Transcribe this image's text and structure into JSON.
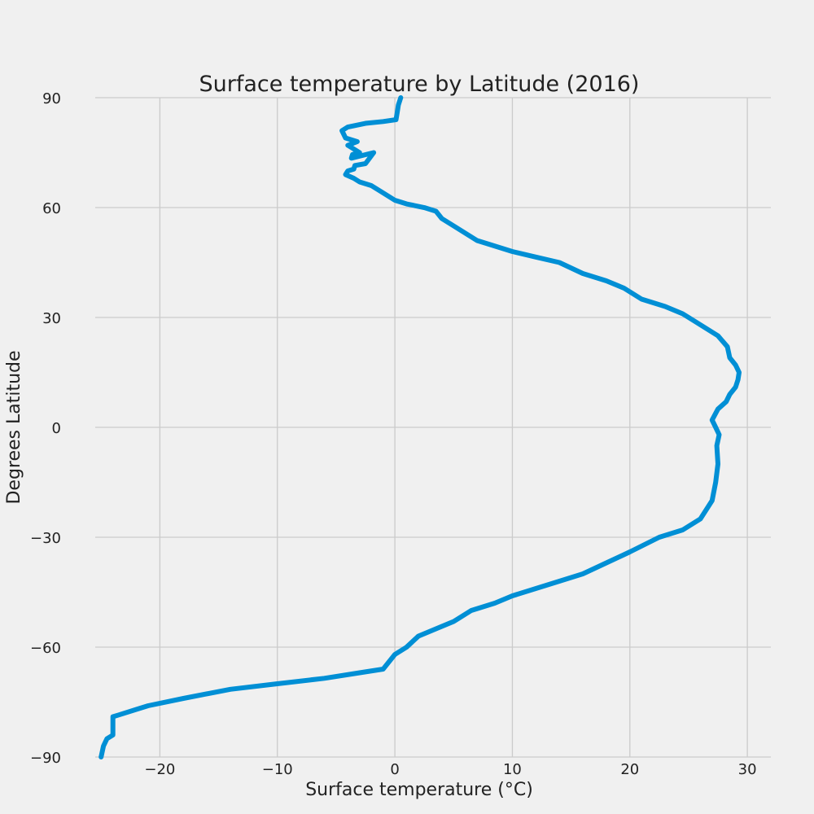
{
  "chart_data": {
    "type": "line",
    "title": "Surface temperature by Latitude (2016)",
    "xlabel": "Surface temperature (°C)",
    "ylabel": "Degrees Latitude",
    "xlim": [
      -25.5,
      32
    ],
    "ylim": [
      -90,
      90
    ],
    "xticks": [
      -20,
      -10,
      0,
      10,
      20,
      30
    ],
    "yticks": [
      -90,
      -60,
      -30,
      0,
      30,
      60,
      90
    ],
    "xtick_labels": [
      "−20",
      "−10",
      "0",
      "10",
      "20",
      "30"
    ],
    "ytick_labels": [
      "−90",
      "−60",
      "−30",
      "0",
      "30",
      "60",
      "90"
    ],
    "grid": true,
    "line_color": "#008fd5",
    "background_color": "#f0f0f0",
    "grid_color": "#cbcbcb",
    "series": [
      {
        "x": [
          0.5,
          0.3,
          0.2,
          0.1,
          -1.0,
          -2.5,
          -4.0,
          -4.5,
          -4.2,
          -3.2,
          -4.0,
          -3.5,
          -3.0,
          -3.6,
          -3.7,
          -1.8,
          -2.5,
          -3.4,
          -3.5,
          -4.0,
          -4.2,
          -3.5,
          -3.0,
          -2.0,
          -1.0,
          0.0,
          1.0,
          2.5,
          3.5,
          4.0,
          5.0,
          6.0,
          7.0,
          8.0,
          10.0,
          12.0,
          14.0,
          16.0,
          18.0,
          19.5,
          20.0,
          21.0,
          23.0,
          24.5,
          25.5,
          26.5,
          27.5,
          28.3,
          28.5,
          29.0,
          29.3,
          29.2,
          29.0,
          28.5,
          28.2,
          27.5,
          27.0,
          27.3,
          27.6,
          27.4,
          27.5,
          27.3,
          27.0,
          26.0,
          24.5,
          22.5,
          20.0,
          18.0,
          16.0,
          14.0,
          12.0,
          10.0,
          8.5,
          6.5,
          5.0,
          3.5,
          2.0,
          1.0,
          0.0,
          -1.0,
          -3.0,
          -6.0,
          -10.0,
          -14.0,
          -18.0,
          -21.0,
          -22.0,
          -23.5,
          -24.0,
          -24.0,
          -24.0,
          -24.5,
          -24.8,
          -25.0
        ],
        "y": [
          90,
          88,
          86,
          84,
          83.5,
          83,
          82,
          81,
          79,
          78,
          77,
          76,
          75,
          74.5,
          73.5,
          75,
          72,
          71.5,
          70.5,
          70,
          69,
          68,
          67,
          66,
          64,
          62,
          61,
          60,
          59,
          57,
          55,
          53,
          51,
          50,
          48,
          46.5,
          45,
          42,
          40,
          38,
          37,
          35,
          33,
          31,
          29,
          27,
          25,
          22,
          19,
          17,
          15,
          13,
          11,
          9,
          7,
          5,
          2,
          0,
          -2,
          -5,
          -10,
          -15,
          -20,
          -25,
          -28,
          -30,
          -34,
          -37,
          -40,
          -42,
          -44,
          -46,
          -48,
          -50,
          -53,
          -55,
          -57,
          -60,
          -62,
          -66,
          -67,
          -68.5,
          -70,
          -71.5,
          -74,
          -76,
          -77,
          -78.5,
          -79,
          -80,
          -84,
          -85,
          -87,
          -90
        ]
      }
    ]
  }
}
